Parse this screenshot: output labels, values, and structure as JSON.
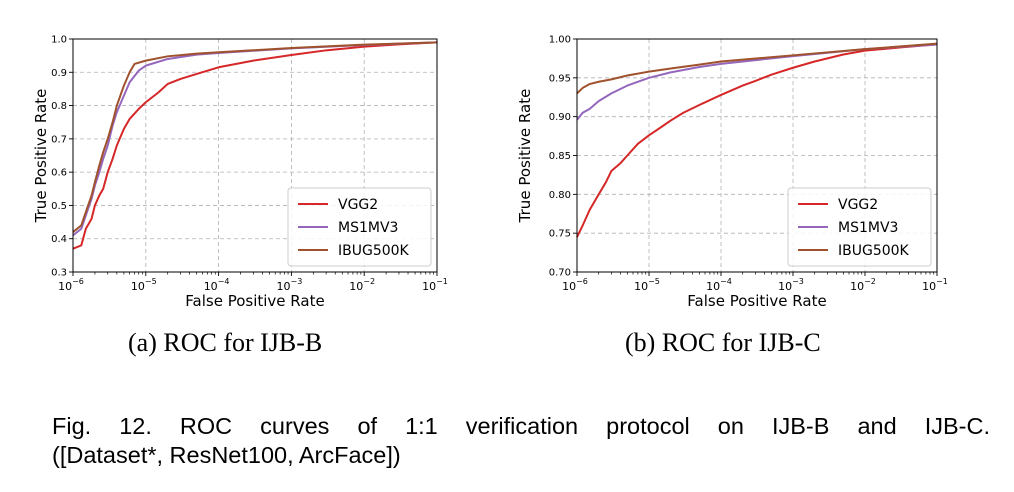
{
  "figure": {
    "caption_line1": "Fig. 12. ROC curves of 1:1 verification protocol on IJB-B and IJB-C.",
    "caption_line2": "([Dataset*, ResNet100, ArcFace])"
  },
  "chart_data": [
    {
      "type": "line",
      "caption": "(a)  ROC for IJB-B",
      "xlabel": "False Positive Rate",
      "ylabel": "True Positive Rate",
      "xscale": "log",
      "xlim": [
        1e-06,
        0.1
      ],
      "ylim": [
        0.3,
        1.0
      ],
      "xticks": [
        {
          "v": 1e-06,
          "base": "10",
          "exp": "−6"
        },
        {
          "v": 1e-05,
          "base": "10",
          "exp": "−5"
        },
        {
          "v": 0.0001,
          "base": "10",
          "exp": "−4"
        },
        {
          "v": 0.001,
          "base": "10",
          "exp": "−3"
        },
        {
          "v": 0.01,
          "base": "10",
          "exp": "−2"
        },
        {
          "v": 0.1,
          "base": "10",
          "exp": "−1"
        }
      ],
      "yticks": [
        {
          "v": 0.3,
          "label": "0.3"
        },
        {
          "v": 0.4,
          "label": "0.4"
        },
        {
          "v": 0.5,
          "label": "0.5"
        },
        {
          "v": 0.6,
          "label": "0.6"
        },
        {
          "v": 0.7,
          "label": "0.7"
        },
        {
          "v": 0.8,
          "label": "0.8"
        },
        {
          "v": 0.9,
          "label": "0.9"
        },
        {
          "v": 1.0,
          "label": "1.0"
        }
      ],
      "grid": true,
      "legend_position": "lower right",
      "series": [
        {
          "name": "VGG2",
          "color": "#d62728",
          "x": [
            1e-06,
            1.3e-06,
            1.5e-06,
            1.8e-06,
            2e-06,
            2.3e-06,
            2.6e-06,
            3e-06,
            3.5e-06,
            4e-06,
            5e-06,
            6e-06,
            8e-06,
            1e-05,
            1.5e-05,
            2e-05,
            3e-05,
            5e-05,
            0.0001,
            0.0003,
            0.001,
            0.003,
            0.01,
            0.03,
            0.1
          ],
          "y": [
            0.37,
            0.38,
            0.43,
            0.46,
            0.5,
            0.53,
            0.55,
            0.6,
            0.64,
            0.68,
            0.73,
            0.76,
            0.79,
            0.81,
            0.84,
            0.865,
            0.88,
            0.895,
            0.915,
            0.935,
            0.952,
            0.966,
            0.977,
            0.984,
            0.99
          ]
        },
        {
          "name": "MS1MV3",
          "color": "#9467bd",
          "x": [
            1e-06,
            1.3e-06,
            1.5e-06,
            1.8e-06,
            2e-06,
            2.3e-06,
            2.6e-06,
            3e-06,
            3.5e-06,
            4e-06,
            5e-06,
            6e-06,
            8e-06,
            1e-05,
            2e-05,
            5e-05,
            0.0001,
            0.001,
            0.01,
            0.1
          ],
          "y": [
            0.41,
            0.43,
            0.47,
            0.52,
            0.56,
            0.6,
            0.64,
            0.68,
            0.74,
            0.78,
            0.83,
            0.87,
            0.905,
            0.92,
            0.94,
            0.953,
            0.958,
            0.972,
            0.982,
            0.99
          ]
        },
        {
          "name": "IBUG500K",
          "color": "#a0522d",
          "x": [
            1e-06,
            1.3e-06,
            1.5e-06,
            1.8e-06,
            2e-06,
            2.3e-06,
            2.6e-06,
            3e-06,
            3.5e-06,
            4e-06,
            5e-06,
            6e-06,
            7e-06,
            1e-05,
            2e-05,
            5e-05,
            0.0001,
            0.001,
            0.01,
            0.1
          ],
          "y": [
            0.42,
            0.44,
            0.48,
            0.53,
            0.57,
            0.62,
            0.66,
            0.7,
            0.75,
            0.8,
            0.86,
            0.9,
            0.925,
            0.935,
            0.948,
            0.956,
            0.96,
            0.973,
            0.983,
            0.99
          ]
        }
      ]
    },
    {
      "type": "line",
      "caption": "(b)  ROC for IJB-C",
      "xlabel": "False Positive Rate",
      "ylabel": "True Positive Rate",
      "xscale": "log",
      "xlim": [
        1e-06,
        0.1
      ],
      "ylim": [
        0.7,
        1.0
      ],
      "xticks": [
        {
          "v": 1e-06,
          "base": "10",
          "exp": "−6"
        },
        {
          "v": 1e-05,
          "base": "10",
          "exp": "−5"
        },
        {
          "v": 0.0001,
          "base": "10",
          "exp": "−4"
        },
        {
          "v": 0.001,
          "base": "10",
          "exp": "−3"
        },
        {
          "v": 0.01,
          "base": "10",
          "exp": "−2"
        },
        {
          "v": 0.1,
          "base": "10",
          "exp": "−1"
        }
      ],
      "yticks": [
        {
          "v": 0.7,
          "label": "0.70"
        },
        {
          "v": 0.75,
          "label": "0.75"
        },
        {
          "v": 0.8,
          "label": "0.80"
        },
        {
          "v": 0.85,
          "label": "0.85"
        },
        {
          "v": 0.9,
          "label": "0.90"
        },
        {
          "v": 0.95,
          "label": "0.95"
        },
        {
          "v": 1.0,
          "label": "1.00"
        }
      ],
      "grid": true,
      "legend_position": "lower right",
      "series": [
        {
          "name": "VGG2",
          "color": "#d62728",
          "x": [
            1e-06,
            1.2e-06,
            1.5e-06,
            2e-06,
            2.5e-06,
            3e-06,
            4e-06,
            5e-06,
            7e-06,
            1e-05,
            1.5e-05,
            2e-05,
            3e-05,
            5e-05,
            0.0001,
            0.0002,
            0.0003,
            0.0005,
            0.001,
            0.002,
            0.005,
            0.01,
            0.03,
            0.1
          ],
          "y": [
            0.745,
            0.76,
            0.78,
            0.8,
            0.815,
            0.83,
            0.84,
            0.85,
            0.865,
            0.876,
            0.887,
            0.895,
            0.905,
            0.915,
            0.928,
            0.94,
            0.946,
            0.954,
            0.963,
            0.971,
            0.98,
            0.985,
            0.989,
            0.993
          ]
        },
        {
          "name": "MS1MV3",
          "color": "#9467bd",
          "x": [
            1e-06,
            1.2e-06,
            1.5e-06,
            2e-06,
            3e-06,
            5e-06,
            1e-05,
            2e-05,
            5e-05,
            0.0001,
            0.001,
            0.01,
            0.1
          ],
          "y": [
            0.896,
            0.905,
            0.91,
            0.92,
            0.93,
            0.94,
            0.95,
            0.957,
            0.964,
            0.968,
            0.978,
            0.987,
            0.993
          ]
        },
        {
          "name": "IBUG500K",
          "color": "#a0522d",
          "x": [
            1e-06,
            1.2e-06,
            1.5e-06,
            2e-06,
            3e-06,
            5e-06,
            1e-05,
            2e-05,
            5e-05,
            0.0001,
            0.001,
            0.01,
            0.1
          ],
          "y": [
            0.93,
            0.937,
            0.942,
            0.945,
            0.948,
            0.953,
            0.958,
            0.962,
            0.967,
            0.971,
            0.979,
            0.987,
            0.994
          ]
        }
      ]
    }
  ]
}
